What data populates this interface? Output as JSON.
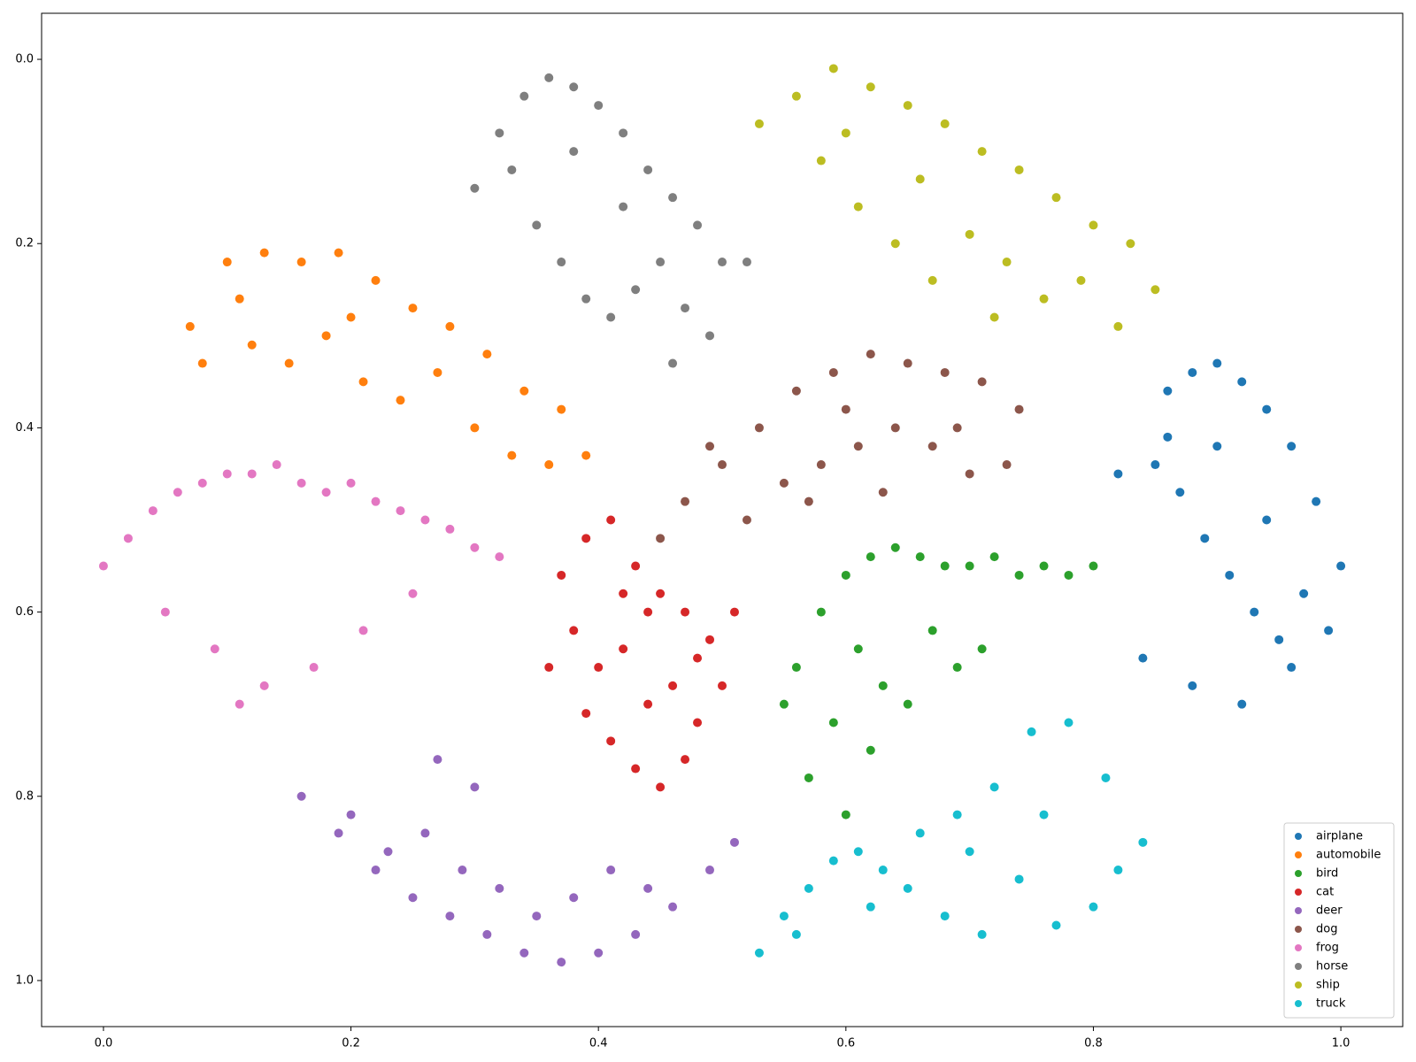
{
  "chart_data": {
    "type": "scatter",
    "xlim": [
      -0.05,
      1.05
    ],
    "ylim": [
      -0.05,
      1.05
    ],
    "y_inverted": true,
    "xticks": [
      {
        "value": 0,
        "label": "0.0"
      },
      0.2,
      0.4,
      0.6,
      0.8,
      {
        "value": 1,
        "label": "1.0"
      }
    ],
    "yticks": [
      {
        "value": 0,
        "label": "0.0"
      },
      0.2,
      0.4,
      0.6,
      0.8,
      {
        "value": 1,
        "label": "1.0"
      }
    ],
    "legend": "lower right",
    "series": [
      {
        "name": "airplane",
        "color": "#1f77b4",
        "x": [
          0.86,
          0.88,
          0.9,
          0.92,
          0.94,
          0.96,
          0.98,
          1.0,
          0.85,
          0.87,
          0.89,
          0.91,
          0.93,
          0.95,
          0.97,
          0.99,
          0.84,
          0.88,
          0.92,
          0.96,
          0.86,
          0.9,
          0.94,
          0.82
        ],
        "values": [
          0.36,
          0.34,
          0.33,
          0.35,
          0.38,
          0.42,
          0.48,
          0.55,
          0.44,
          0.47,
          0.52,
          0.56,
          0.6,
          0.63,
          0.58,
          0.62,
          0.65,
          0.68,
          0.7,
          0.66,
          0.41,
          0.42,
          0.5,
          0.45
        ]
      },
      {
        "name": "automobile",
        "color": "#ff7f0e",
        "x": [
          0.07,
          0.1,
          0.13,
          0.16,
          0.19,
          0.22,
          0.25,
          0.28,
          0.31,
          0.34,
          0.37,
          0.39,
          0.08,
          0.12,
          0.15,
          0.18,
          0.21,
          0.24,
          0.27,
          0.3,
          0.33,
          0.36,
          0.11,
          0.2
        ],
        "values": [
          0.29,
          0.22,
          0.21,
          0.22,
          0.21,
          0.24,
          0.27,
          0.29,
          0.32,
          0.36,
          0.38,
          0.43,
          0.33,
          0.31,
          0.33,
          0.3,
          0.35,
          0.37,
          0.34,
          0.4,
          0.43,
          0.44,
          0.26,
          0.28
        ]
      },
      {
        "name": "bird",
        "color": "#2ca02c",
        "x": [
          0.56,
          0.58,
          0.6,
          0.62,
          0.64,
          0.66,
          0.68,
          0.7,
          0.72,
          0.74,
          0.76,
          0.78,
          0.8,
          0.59,
          0.61,
          0.63,
          0.65,
          0.67,
          0.69,
          0.71,
          0.57,
          0.6,
          0.62,
          0.55
        ],
        "values": [
          0.66,
          0.6,
          0.56,
          0.54,
          0.53,
          0.54,
          0.55,
          0.55,
          0.54,
          0.56,
          0.55,
          0.56,
          0.55,
          0.72,
          0.64,
          0.68,
          0.7,
          0.62,
          0.66,
          0.64,
          0.78,
          0.82,
          0.75,
          0.7
        ]
      },
      {
        "name": "cat",
        "color": "#d62728",
        "x": [
          0.37,
          0.39,
          0.41,
          0.43,
          0.45,
          0.47,
          0.49,
          0.51,
          0.38,
          0.4,
          0.42,
          0.44,
          0.46,
          0.48,
          0.5,
          0.41,
          0.43,
          0.45,
          0.47,
          0.39,
          0.44,
          0.36,
          0.42,
          0.48
        ],
        "values": [
          0.56,
          0.52,
          0.5,
          0.55,
          0.58,
          0.6,
          0.63,
          0.6,
          0.62,
          0.66,
          0.64,
          0.7,
          0.68,
          0.72,
          0.68,
          0.74,
          0.77,
          0.79,
          0.76,
          0.71,
          0.6,
          0.66,
          0.58,
          0.65
        ]
      },
      {
        "name": "deer",
        "color": "#9467bd",
        "x": [
          0.16,
          0.19,
          0.22,
          0.25,
          0.28,
          0.31,
          0.34,
          0.37,
          0.4,
          0.43,
          0.46,
          0.49,
          0.51,
          0.2,
          0.23,
          0.26,
          0.29,
          0.32,
          0.35,
          0.38,
          0.41,
          0.44,
          0.27,
          0.3
        ],
        "values": [
          0.8,
          0.84,
          0.88,
          0.91,
          0.93,
          0.95,
          0.97,
          0.98,
          0.97,
          0.95,
          0.92,
          0.88,
          0.85,
          0.82,
          0.86,
          0.84,
          0.88,
          0.9,
          0.93,
          0.91,
          0.88,
          0.9,
          0.76,
          0.79
        ]
      },
      {
        "name": "dog",
        "color": "#8c564b",
        "x": [
          0.47,
          0.5,
          0.53,
          0.56,
          0.59,
          0.62,
          0.65,
          0.68,
          0.71,
          0.74,
          0.52,
          0.55,
          0.58,
          0.61,
          0.64,
          0.67,
          0.7,
          0.73,
          0.49,
          0.57,
          0.63,
          0.69,
          0.45,
          0.6
        ],
        "values": [
          0.48,
          0.44,
          0.4,
          0.36,
          0.34,
          0.32,
          0.33,
          0.34,
          0.35,
          0.38,
          0.5,
          0.46,
          0.44,
          0.42,
          0.4,
          0.42,
          0.45,
          0.44,
          0.42,
          0.48,
          0.47,
          0.4,
          0.52,
          0.38
        ]
      },
      {
        "name": "frog",
        "color": "#e377c2",
        "x": [
          0.0,
          0.02,
          0.04,
          0.06,
          0.08,
          0.1,
          0.12,
          0.14,
          0.16,
          0.18,
          0.2,
          0.22,
          0.24,
          0.26,
          0.28,
          0.3,
          0.32,
          0.05,
          0.09,
          0.13,
          0.17,
          0.21,
          0.25,
          0.11
        ],
        "values": [
          0.55,
          0.52,
          0.49,
          0.47,
          0.46,
          0.45,
          0.45,
          0.44,
          0.46,
          0.47,
          0.46,
          0.48,
          0.49,
          0.5,
          0.51,
          0.53,
          0.54,
          0.6,
          0.64,
          0.68,
          0.66,
          0.62,
          0.58,
          0.7
        ]
      },
      {
        "name": "horse",
        "color": "#7f7f7f",
        "x": [
          0.3,
          0.32,
          0.34,
          0.36,
          0.38,
          0.4,
          0.42,
          0.44,
          0.46,
          0.48,
          0.5,
          0.52,
          0.33,
          0.35,
          0.37,
          0.39,
          0.41,
          0.43,
          0.45,
          0.47,
          0.49,
          0.38,
          0.42,
          0.46
        ],
        "values": [
          0.14,
          0.08,
          0.04,
          0.02,
          0.03,
          0.05,
          0.08,
          0.12,
          0.15,
          0.18,
          0.22,
          0.22,
          0.12,
          0.18,
          0.22,
          0.26,
          0.28,
          0.25,
          0.22,
          0.27,
          0.3,
          0.1,
          0.16,
          0.33
        ]
      },
      {
        "name": "ship",
        "color": "#bcbd22",
        "x": [
          0.53,
          0.56,
          0.59,
          0.62,
          0.65,
          0.68,
          0.71,
          0.74,
          0.77,
          0.8,
          0.83,
          0.85,
          0.58,
          0.61,
          0.64,
          0.67,
          0.7,
          0.73,
          0.76,
          0.79,
          0.82,
          0.6,
          0.66,
          0.72
        ],
        "values": [
          0.07,
          0.04,
          0.01,
          0.03,
          0.05,
          0.07,
          0.1,
          0.12,
          0.15,
          0.18,
          0.2,
          0.25,
          0.11,
          0.16,
          0.2,
          0.24,
          0.19,
          0.22,
          0.26,
          0.24,
          0.29,
          0.08,
          0.13,
          0.28
        ]
      },
      {
        "name": "truck",
        "color": "#17becf",
        "x": [
          0.53,
          0.55,
          0.57,
          0.59,
          0.61,
          0.63,
          0.66,
          0.69,
          0.72,
          0.75,
          0.78,
          0.81,
          0.84,
          0.62,
          0.65,
          0.68,
          0.71,
          0.74,
          0.77,
          0.8,
          0.82,
          0.7,
          0.76,
          0.56
        ],
        "values": [
          0.97,
          0.93,
          0.9,
          0.87,
          0.86,
          0.88,
          0.84,
          0.82,
          0.79,
          0.73,
          0.72,
          0.78,
          0.85,
          0.92,
          0.9,
          0.93,
          0.95,
          0.89,
          0.94,
          0.92,
          0.88,
          0.86,
          0.82,
          0.95
        ]
      }
    ]
  }
}
